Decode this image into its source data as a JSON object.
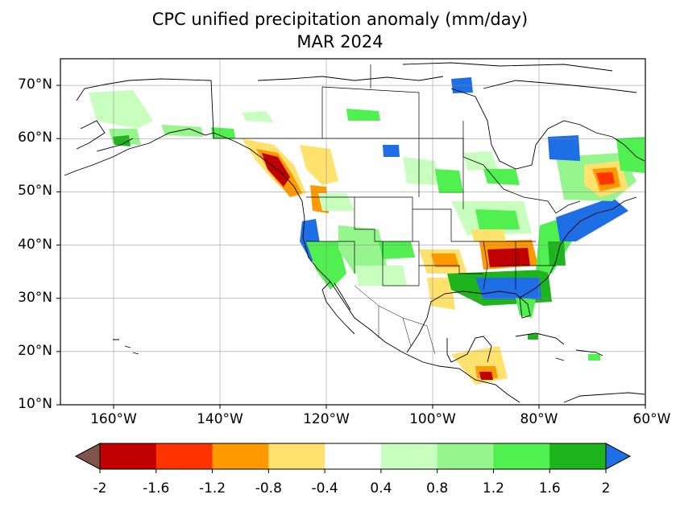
{
  "title": {
    "line1": "CPC unified precipitation anomaly (mm/day)",
    "line2": "MAR 2024"
  },
  "map": {
    "lon_range": [
      -170,
      -60
    ],
    "lat_range": [
      10,
      75
    ],
    "lat_ticks": [
      "70°N",
      "60°N",
      "50°N",
      "40°N",
      "30°N",
      "20°N",
      "10°N"
    ],
    "lon_ticks": [
      "160°W",
      "140°W",
      "120°W",
      "100°W",
      "80°W",
      "60°W"
    ],
    "grid": true
  },
  "colorbar": {
    "ticks": [
      "-2",
      "-1.6",
      "-1.2",
      "-0.8",
      "-0.4",
      "0.4",
      "0.8",
      "1.2",
      "1.6",
      "2"
    ],
    "under_color": "#7f5449",
    "over_color": "#1e6ee6",
    "colors": [
      "#c00000",
      "#ff3300",
      "#ff9900",
      "#ffe16e",
      "#ffffff",
      "#c8ffbe",
      "#96f58c",
      "#50f050",
      "#1eb41e"
    ]
  },
  "anomaly_regions": [
    {
      "label": "Pacific Northwest coast",
      "color": "#c00000"
    },
    {
      "label": "California coast",
      "color": "#1e6ee6"
    },
    {
      "label": "Ohio Valley",
      "color": "#c00000"
    },
    {
      "label": "Gulf Coast",
      "color": "#1e6ee6"
    },
    {
      "label": "Northeast coast",
      "color": "#1e6ee6"
    },
    {
      "label": "Quebec",
      "color": "#ff3300"
    },
    {
      "label": "Hudson Bay east",
      "color": "#1e6ee6"
    }
  ]
}
